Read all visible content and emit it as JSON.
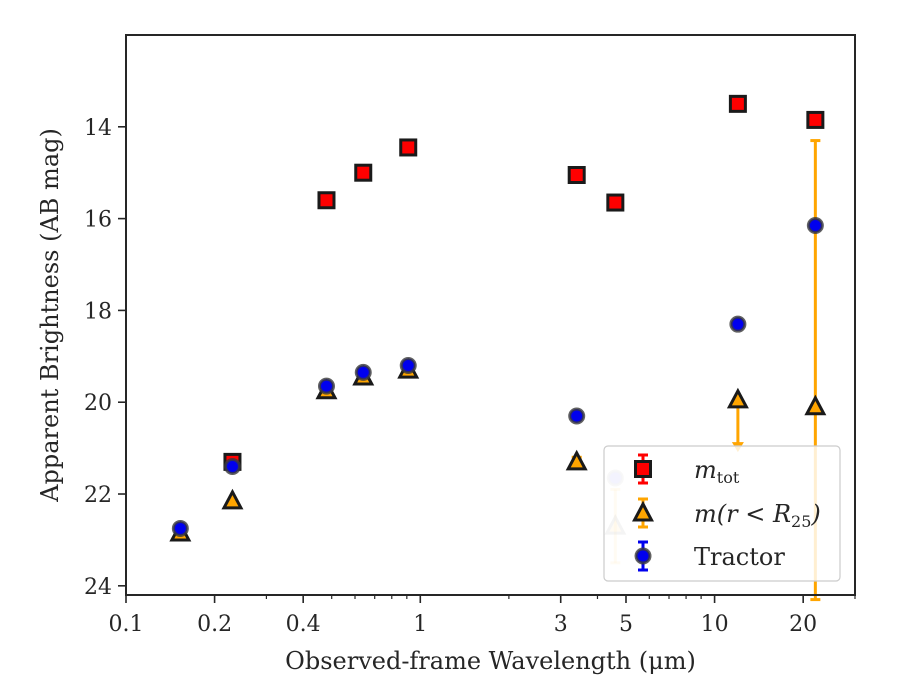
{
  "chart_data": {
    "type": "scatter",
    "title": "",
    "xlabel": "Observed-frame Wavelength (μm)",
    "ylabel": "Apparent Brightness (AB mag)",
    "xscale": "log",
    "xlim": [
      0.1,
      30
    ],
    "ylim": [
      24.2,
      12.0
    ],
    "y_inverted": true,
    "x_major_ticks": [
      {
        "value": 0.1,
        "label": "0.1"
      },
      {
        "value": 0.2,
        "label": "0.2"
      },
      {
        "value": 0.4,
        "label": "0.4"
      },
      {
        "value": 1,
        "label": "1"
      },
      {
        "value": 3,
        "label": "3"
      },
      {
        "value": 5,
        "label": "5"
      },
      {
        "value": 10,
        "label": "10"
      },
      {
        "value": 20,
        "label": "20"
      }
    ],
    "x_minor_ticks": [
      0.3,
      0.5,
      0.6,
      0.7,
      0.8,
      0.9,
      2,
      4,
      6,
      7,
      8,
      9,
      30
    ],
    "y_ticks": [
      {
        "value": 14,
        "label": "14"
      },
      {
        "value": 16,
        "label": "16"
      },
      {
        "value": 18,
        "label": "18"
      },
      {
        "value": 20,
        "label": "20"
      },
      {
        "value": 22,
        "label": "22"
      },
      {
        "value": 24,
        "label": "24"
      }
    ],
    "grid": false,
    "legend_position": "bottom-right",
    "series": [
      {
        "name": "m_tot",
        "legend_main": "m",
        "legend_sub": "tot",
        "marker": "square",
        "color": "#ff0000",
        "edge_color": "#1a1a1a",
        "errorbar_color": "#ff0000",
        "points": [
          {
            "x": 0.23,
            "y": 21.3
          },
          {
            "x": 0.48,
            "y": 15.6
          },
          {
            "x": 0.64,
            "y": 15.0
          },
          {
            "x": 0.91,
            "y": 14.45
          },
          {
            "x": 3.4,
            "y": 15.05
          },
          {
            "x": 4.6,
            "y": 15.65
          },
          {
            "x": 12.0,
            "y": 13.5
          },
          {
            "x": 22.0,
            "y": 13.85
          }
        ]
      },
      {
        "name": "m(r < R25)",
        "legend_main": "m(r < R",
        "legend_sub": "25",
        "legend_end": ")",
        "marker": "triangle",
        "color": "#ffa500",
        "edge_color": "#1a1a1a",
        "errorbar_color": "#ffa500",
        "points": [
          {
            "x": 0.153,
            "y": 22.85
          },
          {
            "x": 0.23,
            "y": 22.15
          },
          {
            "x": 0.48,
            "y": 19.75
          },
          {
            "x": 0.64,
            "y": 19.45
          },
          {
            "x": 0.91,
            "y": 19.3
          },
          {
            "x": 3.4,
            "y": 21.3,
            "yerr": 0.1
          },
          {
            "x": 4.6,
            "y": 22.7,
            "yerr_low": 0.8,
            "yerr_high": 0.8,
            "faded": true
          },
          {
            "x": 12.0,
            "y": 19.95,
            "upper_limit_arrow_to": 21.0
          },
          {
            "x": 22.0,
            "y": 20.1,
            "yerr_high": 5.8,
            "yerr_low": 4.2
          }
        ]
      },
      {
        "name": "Tractor",
        "legend_main": "Tractor",
        "marker": "circle",
        "color": "#0000ee",
        "edge_color": "#3a3a3a",
        "errorbar_color": "#0000ee",
        "points": [
          {
            "x": 0.153,
            "y": 22.75
          },
          {
            "x": 0.23,
            "y": 21.4
          },
          {
            "x": 0.48,
            "y": 19.65
          },
          {
            "x": 0.64,
            "y": 19.35
          },
          {
            "x": 0.91,
            "y": 19.2
          },
          {
            "x": 3.4,
            "y": 20.3
          },
          {
            "x": 4.6,
            "y": 21.65,
            "faded": true
          },
          {
            "x": 12.0,
            "y": 18.3
          },
          {
            "x": 22.0,
            "y": 16.15
          }
        ]
      }
    ]
  }
}
